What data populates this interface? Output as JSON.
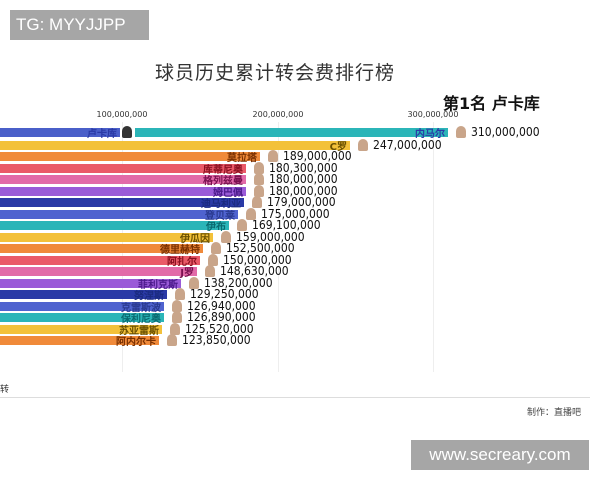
{
  "badges": {
    "top_left": "TG: MYYJJPP",
    "bottom_right": "www.secreary.com"
  },
  "header": {
    "title": "球员历史累计转会费排行榜",
    "leader": "第1名 卢卡库"
  },
  "footer": {
    "left_text": "转",
    "credit": "制作：直播吧"
  },
  "axis": {
    "ticks": [
      "100,000,000",
      "200,000,000",
      "300,000,000"
    ]
  },
  "chart_data": {
    "type": "bar",
    "orientation": "horizontal",
    "title": "球员历史累计转会费排行榜",
    "subtitle": "第1名 卢卡库",
    "xlabel": "",
    "ylabel": "",
    "xlim": [
      0,
      320000000
    ],
    "x_ticks": [
      100000000,
      200000000,
      300000000
    ],
    "grid": true,
    "categories": [
      "卢卡库",
      "内马尔",
      "C罗",
      "莫拉塔",
      "库蒂尼奥",
      "格列兹曼",
      "姆巴佩",
      "迪马利亚",
      "登贝莱",
      "伊布",
      "伊瓜因",
      "德里赫特",
      "阿扎尔",
      "J罗",
      "菲利克斯",
      "努涅斯",
      "克雷斯波",
      "保利尼奥",
      "苏亚雷斯",
      "阿内尔卡"
    ],
    "values": [
      null,
      310000000,
      247000000,
      189000000,
      180300000,
      180000000,
      180000000,
      179000000,
      175000000,
      169100000,
      159000000,
      152500000,
      150000000,
      148630000,
      138200000,
      129250000,
      126940000,
      126890000,
      125520000,
      123850000
    ],
    "value_labels": [
      "",
      "310,000,000",
      "247,000,000",
      "189,000,000",
      "180,300,000",
      "180,000,000",
      "180,000,000",
      "179,000,000",
      "175,000,000",
      "169,100,000",
      "159,000,000",
      "152,500,000",
      "150,000,000",
      "148,630,000",
      "138,200,000",
      "129,250,000",
      "126,940,000",
      "126,890,000",
      "125,520,000",
      "123,850,000"
    ],
    "colors": [
      "#4a5fc9",
      "#2bb5b8",
      "#f3c13a",
      "#f08a3a",
      "#ea5a68",
      "#e26aa8",
      "#9a5bd8",
      "#2a3aa6",
      "#4f63cf",
      "#2bb5b8",
      "#f3c13a",
      "#f08a3a",
      "#ea5a68",
      "#e26aa8",
      "#9a5bd8",
      "#2a3aa6",
      "#4f63cf",
      "#2bb5b8",
      "#f3c13a",
      "#f08a3a"
    ],
    "label_colors": [
      "#2a3aa6",
      "#2a3aa6",
      "#8a6a00",
      "#8a3a00",
      "#8a1020",
      "#8a1050",
      "#4a1a8a",
      "#1a2a80",
      "#2a3a90",
      "#0a6a70",
      "#6a5000",
      "#8a3a00",
      "#8a1020",
      "#8a1050",
      "#4a1a8a",
      "#1a2a80",
      "#2a3a90",
      "#0a6a70",
      "#6a5000",
      "#8a3a00"
    ]
  },
  "rows": [
    {
      "name": "内马尔",
      "value": "310,000,000",
      "color": "#2bb5b8",
      "lc": "#2a3aa6"
    },
    {
      "name": "C罗",
      "value": "247,000,000",
      "color": "#f3c13a",
      "lc": "#6a5000"
    },
    {
      "name": "莫拉塔",
      "value": "189,000,000",
      "color": "#f08a3a",
      "lc": "#7a3000"
    },
    {
      "name": "库蒂尼奥",
      "value": "180,300,000",
      "color": "#ea5a68",
      "lc": "#8a1020"
    },
    {
      "name": "格列兹曼",
      "value": "180,000,000",
      "color": "#e26aa8",
      "lc": "#7a1050"
    },
    {
      "name": "姆巴佩",
      "value": "180,000,000",
      "color": "#9a5bd8",
      "lc": "#4a1a8a"
    },
    {
      "name": "迪马利亚",
      "value": "179,000,000",
      "color": "#2a3aa6",
      "lc": "#1a2a80"
    },
    {
      "name": "登贝莱",
      "value": "175,000,000",
      "color": "#4f63cf",
      "lc": "#2a3a90"
    },
    {
      "name": "伊布",
      "value": "169,100,000",
      "color": "#2bb5b8",
      "lc": "#0a6a70"
    },
    {
      "name": "伊瓜因",
      "value": "159,000,000",
      "color": "#f3c13a",
      "lc": "#6a5000"
    },
    {
      "name": "德里赫特",
      "value": "152,500,000",
      "color": "#f08a3a",
      "lc": "#7a3000"
    },
    {
      "name": "阿扎尔",
      "value": "150,000,000",
      "color": "#ea5a68",
      "lc": "#8a1020"
    },
    {
      "name": "J罗",
      "value": "148,630,000",
      "color": "#e26aa8",
      "lc": "#7a1050"
    },
    {
      "name": "菲利克斯",
      "value": "138,200,000",
      "color": "#9a5bd8",
      "lc": "#4a1a8a"
    },
    {
      "name": "努涅斯",
      "value": "129,250,000",
      "color": "#2a3aa6",
      "lc": "#1a2a80"
    },
    {
      "name": "克雷斯波",
      "value": "126,940,000",
      "color": "#4f63cf",
      "lc": "#2a3a90"
    },
    {
      "name": "保利尼奥",
      "value": "126,890,000",
      "color": "#2bb5b8",
      "lc": "#0a6a70"
    },
    {
      "name": "苏亚雷斯",
      "value": "125,520,000",
      "color": "#f3c13a",
      "lc": "#6a5000"
    },
    {
      "name": "阿内尔卡",
      "value": "123,850,000",
      "color": "#f08a3a",
      "lc": "#7a3000"
    }
  ],
  "lukaku_row": {
    "name": "卢卡库",
    "color": "#4a5fc9"
  }
}
